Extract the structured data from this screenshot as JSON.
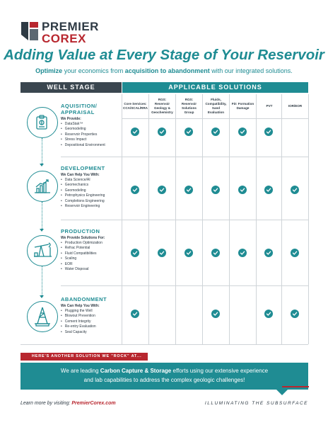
{
  "brand": {
    "line1": "PREMIER",
    "line2": "COREX"
  },
  "headline": "Adding Value at Every Stage of Your Reservoir",
  "subhead": {
    "p1": "Optimize",
    "p2": " your economics from ",
    "p3": "acquisition to abandonment",
    "p4": " with our integrated solutions."
  },
  "table": {
    "well_stage_header": "WELL STAGE",
    "solutions_header": "APPLICABLE SOLUTIONS",
    "columns": [
      "Core Services: CCA/SCAL/RRA",
      "RGS: Reservoir Geology & Geochemistry",
      "RGS: Reservoir Solutions Group",
      "Fluids, Compatibility, Sand Evaluation",
      "FD: Formation Damage",
      "PVT",
      "IOR/EOR"
    ],
    "stages": [
      {
        "title_line1": "AQUISITION/",
        "title_line2": "APPRAISAL",
        "subtitle": "We Provide:",
        "items": [
          "DataStak™",
          "Geomodeling",
          "Reservoir Properties",
          "Stress Impact",
          "Depositional Environment"
        ],
        "checks": [
          true,
          true,
          true,
          true,
          true,
          true,
          false
        ]
      },
      {
        "title_line1": "DEVELOPMENT",
        "title_line2": "",
        "subtitle": "We Can Help You With:",
        "items": [
          "Data Science/AI",
          "Geomechanics",
          "Geomodeling",
          "Petrophysics Engineering",
          "Completions Engineering",
          "Reservoir Engineering"
        ],
        "checks": [
          true,
          true,
          true,
          true,
          true,
          true,
          true
        ]
      },
      {
        "title_line1": "PRODUCTION",
        "title_line2": "",
        "subtitle": "We Provide Solutions For:",
        "items": [
          "Production Optimization",
          "Refrac Potential",
          "Fluid Compatibilities",
          "Scaling",
          "EOR",
          "Water Disposal"
        ],
        "checks": [
          true,
          true,
          true,
          true,
          true,
          true,
          true
        ]
      },
      {
        "title_line1": "ABANDONMENT",
        "title_line2": "",
        "subtitle": "We Can Help You With:",
        "items": [
          "Plugging the Well",
          "Blowout Prevention",
          "Cement Integrity",
          "Re-entry Evaluation",
          "Seal Capacity"
        ],
        "checks": [
          true,
          false,
          false,
          true,
          false,
          true,
          true
        ]
      }
    ]
  },
  "banner": {
    "label": "HERE'S ANOTHER SOLUTION WE \"ROCK\" AT...",
    "t1": "We are leading ",
    "t2": "Carbon Capture & Storage",
    "t3": " efforts using our extensive experience",
    "t4": "and lab capabilities to address the complex geologic challenges!"
  },
  "footer": {
    "left_prefix": "Learn more by visiting: ",
    "left_link": "PremierCorex.com",
    "right": "ILLUMINATING THE SUBSURFACE"
  },
  "colors": {
    "teal": "#1f8c93",
    "dark": "#2e3a44",
    "red": "#b8272f"
  }
}
